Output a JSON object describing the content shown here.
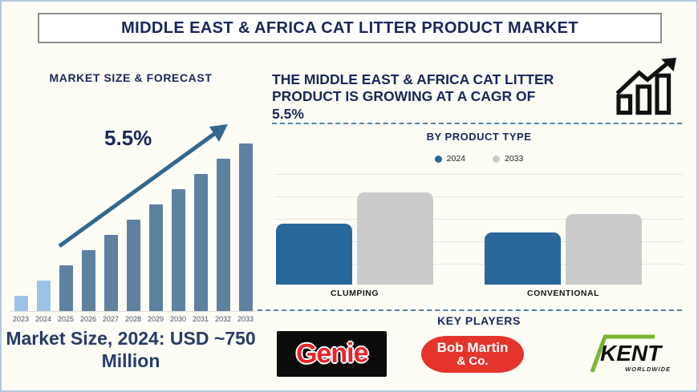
{
  "title_bar": {
    "text": "MIDDLE EAST & AFRICA CAT LITTER PRODUCT MARKET"
  },
  "colors": {
    "navy": "#18265a",
    "page_bg": "#fdfdf6",
    "page_border": "#b5c9e2",
    "left_bar_historical": "#9cc3e5",
    "left_bar_forecast": "#5e81a0",
    "trend_arrow": "#33688f",
    "series_2024_blue": "#29679a",
    "series_2033_gray": "#cbcbcb",
    "dashed_separator": "#4d84a8",
    "gridline": "#e4e4e4"
  },
  "left_panel": {
    "heading": "MARKET SIZE & FORECAST",
    "growth_label": "5.5%",
    "market_size_note": "Market Size, 2024: USD ~750 Million"
  },
  "right_panel": {
    "cagr_lines": [
      "THE MIDDLE EAST & AFRICA CAT LITTER",
      "PRODUCT IS GROWING AT A CAGR OF",
      "5.5%"
    ],
    "growth_icon": "bar-chart-rising-arrow-icon",
    "by_product_type": {
      "heading": "BY PRODUCT TYPE",
      "legend": [
        {
          "label": "2024",
          "color": "#29679a"
        },
        {
          "label": "2033",
          "color": "#cbcbcb"
        }
      ]
    },
    "key_players": {
      "heading": "KEY PLAYERS",
      "logos": [
        {
          "name": "Genie",
          "text": "Genie",
          "style": "red-on-black"
        },
        {
          "name": "Bob Martin & Co.",
          "line1": "Bob Martin",
          "line2": "& Co.",
          "style": "white-on-red"
        },
        {
          "name": "Kent Worldwide",
          "text": "KENT",
          "subtext": "WORLDWIDE",
          "style": "black-with-green-swoosh"
        }
      ]
    }
  },
  "chart_data": [
    {
      "type": "bar",
      "title": "MARKET SIZE & FORECAST",
      "categories": [
        "2023",
        "2024",
        "2025",
        "2026",
        "2027",
        "2028",
        "2029",
        "2030",
        "2031",
        "2032",
        "2033"
      ],
      "values": [
        1,
        2,
        3,
        4,
        5,
        6,
        7,
        8,
        9,
        10,
        11
      ],
      "units": "relative height (stylized, no y-axis shown)",
      "annotation": "5.5%",
      "known_value_label": "2024 = USD ~750 Million",
      "bar_color_historical": "#9cc3e5",
      "bar_color_forecast": "#5e81a0",
      "historical_categories": [
        "2023",
        "2024"
      ],
      "xlabel": "",
      "ylabel": "",
      "grid": false
    },
    {
      "type": "bar",
      "subtype": "grouped",
      "title": "BY PRODUCT TYPE",
      "categories": [
        "CLUMPING",
        "CONVENTIONAL"
      ],
      "series": [
        {
          "name": "2024",
          "color": "#29679a",
          "values": [
            76,
            65
          ]
        },
        {
          "name": "2033",
          "color": "#cbcbcb",
          "values": [
            115,
            88
          ]
        }
      ],
      "units": "relative height (stylized, no y-axis shown)",
      "legend_position": "top",
      "grid": true
    }
  ]
}
